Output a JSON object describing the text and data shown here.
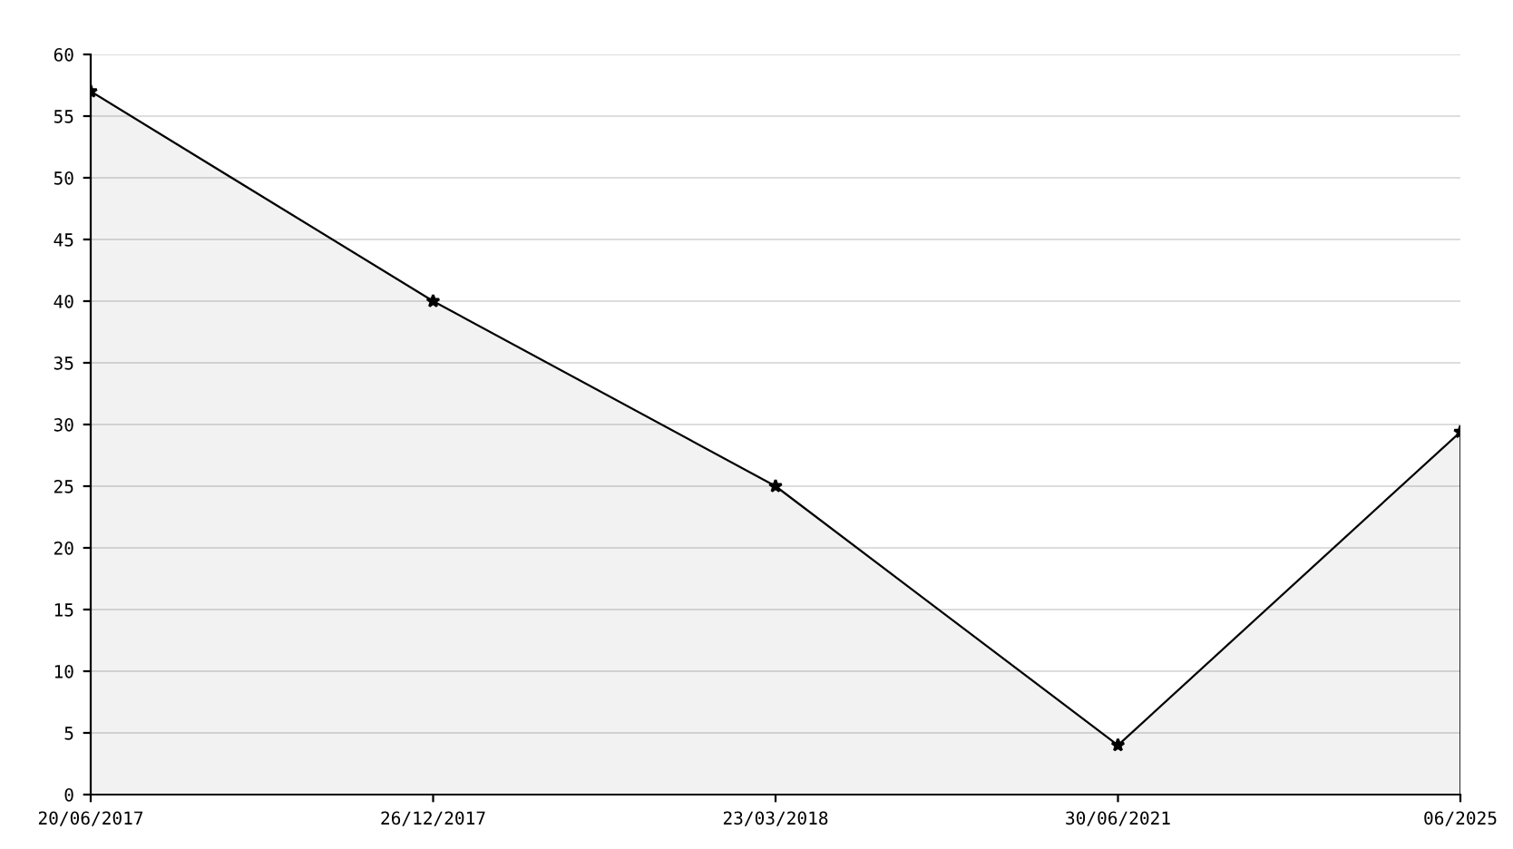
{
  "chart_data": {
    "type": "area",
    "categories": [
      "20/06/2017",
      "26/12/2017",
      "23/03/2018",
      "30/06/2021",
      "06/2025"
    ],
    "series": [
      {
        "color": "#000000",
        "values": [
          57,
          40,
          25,
          4,
          29.4
        ]
      }
    ],
    "ylim": [
      0,
      60
    ],
    "yticks": [
      0,
      5,
      10,
      15,
      20,
      25,
      30,
      35,
      40,
      45,
      50,
      55,
      60
    ],
    "grid": "y",
    "marker": "star",
    "line_style": "solid",
    "legend": false
  }
}
